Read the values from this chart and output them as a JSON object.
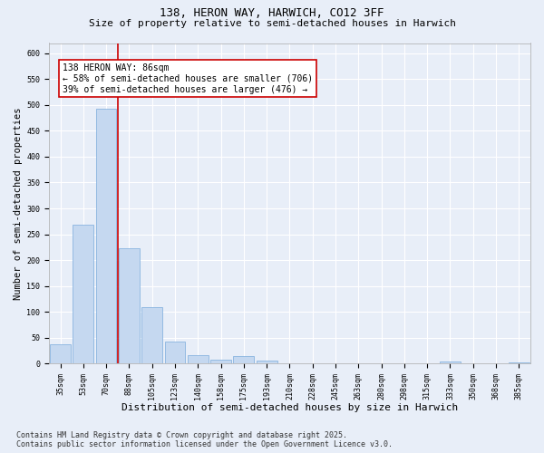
{
  "title_line1": "138, HERON WAY, HARWICH, CO12 3FF",
  "title_line2": "Size of property relative to semi-detached houses in Harwich",
  "xlabel": "Distribution of semi-detached houses by size in Harwich",
  "ylabel": "Number of semi-detached properties",
  "categories": [
    "35sqm",
    "53sqm",
    "70sqm",
    "88sqm",
    "105sqm",
    "123sqm",
    "140sqm",
    "158sqm",
    "175sqm",
    "193sqm",
    "210sqm",
    "228sqm",
    "245sqm",
    "263sqm",
    "280sqm",
    "298sqm",
    "315sqm",
    "333sqm",
    "350sqm",
    "368sqm",
    "385sqm"
  ],
  "values": [
    37,
    268,
    493,
    222,
    109,
    42,
    16,
    8,
    14,
    5,
    1,
    0,
    0,
    0,
    0,
    0,
    0,
    3,
    0,
    1,
    2
  ],
  "bar_color": "#c5d8f0",
  "bar_edge_color": "#7aaadc",
  "vline_x_index": 2.5,
  "vline_color": "#cc0000",
  "annotation_text": "138 HERON WAY: 86sqm\n← 58% of semi-detached houses are smaller (706)\n39% of semi-detached houses are larger (476) →",
  "annotation_box_color": "#ffffff",
  "annotation_box_edge": "#cc0000",
  "ylim": [
    0,
    620
  ],
  "yticks": [
    0,
    50,
    100,
    150,
    200,
    250,
    300,
    350,
    400,
    450,
    500,
    550,
    600
  ],
  "background_color": "#e8eef8",
  "grid_color": "#ffffff",
  "footer_text": "Contains HM Land Registry data © Crown copyright and database right 2025.\nContains public sector information licensed under the Open Government Licence v3.0.",
  "title_fontsize": 9,
  "subtitle_fontsize": 8,
  "xlabel_fontsize": 8,
  "ylabel_fontsize": 7.5,
  "tick_fontsize": 6,
  "annotation_fontsize": 7,
  "footer_fontsize": 6
}
